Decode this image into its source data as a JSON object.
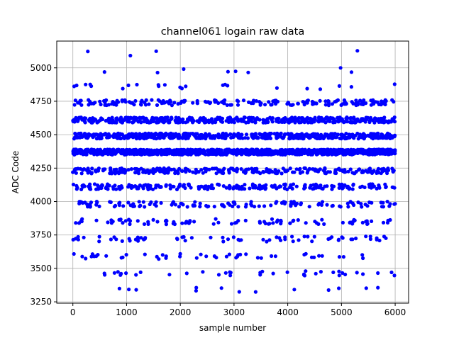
{
  "chart_data": {
    "type": "scatter",
    "title": "channel061 logain raw data",
    "xlabel": "sample number",
    "ylabel": "ADC Code",
    "xlim": [
      -300,
      6250
    ],
    "ylim": [
      3240,
      5200
    ],
    "xticks": [
      0,
      1000,
      2000,
      3000,
      4000,
      5000,
      6000
    ],
    "yticks": [
      3250,
      3500,
      3750,
      4000,
      4250,
      4500,
      4750,
      5000
    ],
    "grid": true,
    "marker_color": "#0000ff",
    "sample_count": 6000,
    "code_levels": [
      {
        "code": 4370,
        "weight": 34
      },
      {
        "code": 4490,
        "weight": 16
      },
      {
        "code": 4610,
        "weight": 14
      },
      {
        "code": 4230,
        "weight": 9
      },
      {
        "code": 4110,
        "weight": 8
      },
      {
        "code": 4740,
        "weight": 6
      },
      {
        "code": 3980,
        "weight": 4
      },
      {
        "code": 3850,
        "weight": 2.5
      },
      {
        "code": 3720,
        "weight": 1.8
      },
      {
        "code": 3590,
        "weight": 1.3
      },
      {
        "code": 3465,
        "weight": 0.9
      },
      {
        "code": 4860,
        "weight": 0.7
      },
      {
        "code": 3340,
        "weight": 0.5
      },
      {
        "code": 4980,
        "weight": 0.3
      },
      {
        "code": 5110,
        "weight": 0.1
      }
    ]
  }
}
